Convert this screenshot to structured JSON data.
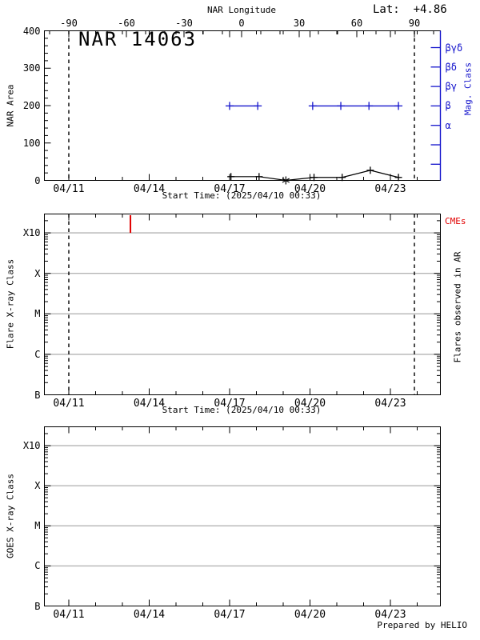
{
  "header": {
    "lat": "Lat:  +4.86"
  },
  "footer": {
    "prepared_by": "Prepared by HELIO"
  },
  "colors": {
    "blue": "#1414cc",
    "red": "#e10000",
    "grid": "#b4b4b4",
    "axis": "#000000"
  },
  "chart_data": [
    {
      "id": "nar-area-panel",
      "type": "line",
      "title": "NAR 14063",
      "ylabel": "NAR Area",
      "xlabel": "Start Time: (2025/04/10 00:33)",
      "ylim": [
        0,
        400
      ],
      "yticks": [
        0,
        100,
        200,
        300,
        400
      ],
      "ytick_minor_step": 20,
      "xticks": [
        {
          "label": "04/11",
          "day": 1
        },
        {
          "label": "04/14",
          "day": 4
        },
        {
          "label": "04/17",
          "day": 7
        },
        {
          "label": "04/20",
          "day": 10
        },
        {
          "label": "04/23",
          "day": 13
        }
      ],
      "top_axis": {
        "label": "NAR Longitude",
        "ticks": [
          -90,
          -60,
          -30,
          0,
          30,
          60,
          90
        ],
        "minor_step": 10
      },
      "right_axis": {
        "label": "Mag. Class",
        "labels": [
          "βγδ",
          "βδ",
          "βγ",
          "β",
          "α"
        ],
        "total_ticks": 7
      },
      "limb_longitudes": [
        -90,
        90
      ],
      "series": [
        {
          "name": "NAR area",
          "color": "black",
          "marker": "plus",
          "points": [
            {
              "day": 7.05,
              "area": 10
            },
            {
              "day": 8.1,
              "area": 10
            },
            {
              "day": 9.1,
              "area": 0,
              "marker": "star"
            },
            {
              "day": 10.15,
              "area": 8
            },
            {
              "day": 11.2,
              "area": 8
            },
            {
              "day": 12.25,
              "area": 27
            },
            {
              "day": 13.3,
              "area": 8
            }
          ]
        },
        {
          "name": "Magnetic class",
          "color": "blue",
          "marker": "plus",
          "mag_class": "β",
          "segments": [
            {
              "days": [
                7.0,
                8.05
              ]
            },
            {
              "days": [
                10.1,
                11.15,
                12.2,
                13.3
              ]
            }
          ]
        }
      ]
    },
    {
      "id": "flare-panel",
      "type": "events",
      "ylabel": "Flare X-ray Class",
      "xlabel": "Start Time: (2025/04/10 00:33)",
      "right_label": "Flares observed in AR",
      "cme_label": "CMEs",
      "yticks": [
        "B",
        "C",
        "M",
        "X",
        "X10"
      ],
      "xticks": [
        {
          "label": "04/11",
          "day": 1
        },
        {
          "label": "04/14",
          "day": 4
        },
        {
          "label": "04/17",
          "day": 7
        },
        {
          "label": "04/20",
          "day": 10
        },
        {
          "label": "04/23",
          "day": 13
        }
      ],
      "cme_event_days": [
        3.3
      ],
      "flare_events": [],
      "limb_longitudes": [
        -90,
        90
      ]
    },
    {
      "id": "goes-panel",
      "type": "events",
      "ylabel": "GOES X-ray Class",
      "yticks": [
        "B",
        "C",
        "M",
        "X",
        "X10"
      ],
      "xticks": [
        {
          "label": "04/11",
          "day": 1
        },
        {
          "label": "04/14",
          "day": 4
        },
        {
          "label": "04/17",
          "day": 7
        },
        {
          "label": "04/20",
          "day": 10
        },
        {
          "label": "04/23",
          "day": 13
        }
      ],
      "flare_events": []
    }
  ]
}
